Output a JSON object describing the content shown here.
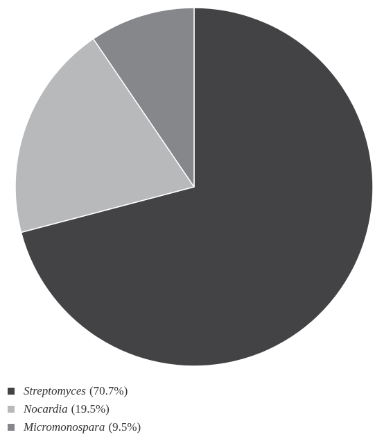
{
  "chart_data": {
    "type": "pie",
    "title": "",
    "start_angle_deg": 0,
    "direction": "clockwise",
    "slices": [
      {
        "label": "Streptomyces",
        "value": 70.7,
        "display": "(70.7%)",
        "color": "#434345"
      },
      {
        "label": "Nocardia",
        "value": 19.5,
        "display": "(19.5%)",
        "color": "#b8b9bb"
      },
      {
        "label": "Micromonospara",
        "value": 9.5,
        "display": "(9.5%)",
        "color": "#86878a"
      }
    ],
    "legend_position": "bottom-left"
  }
}
